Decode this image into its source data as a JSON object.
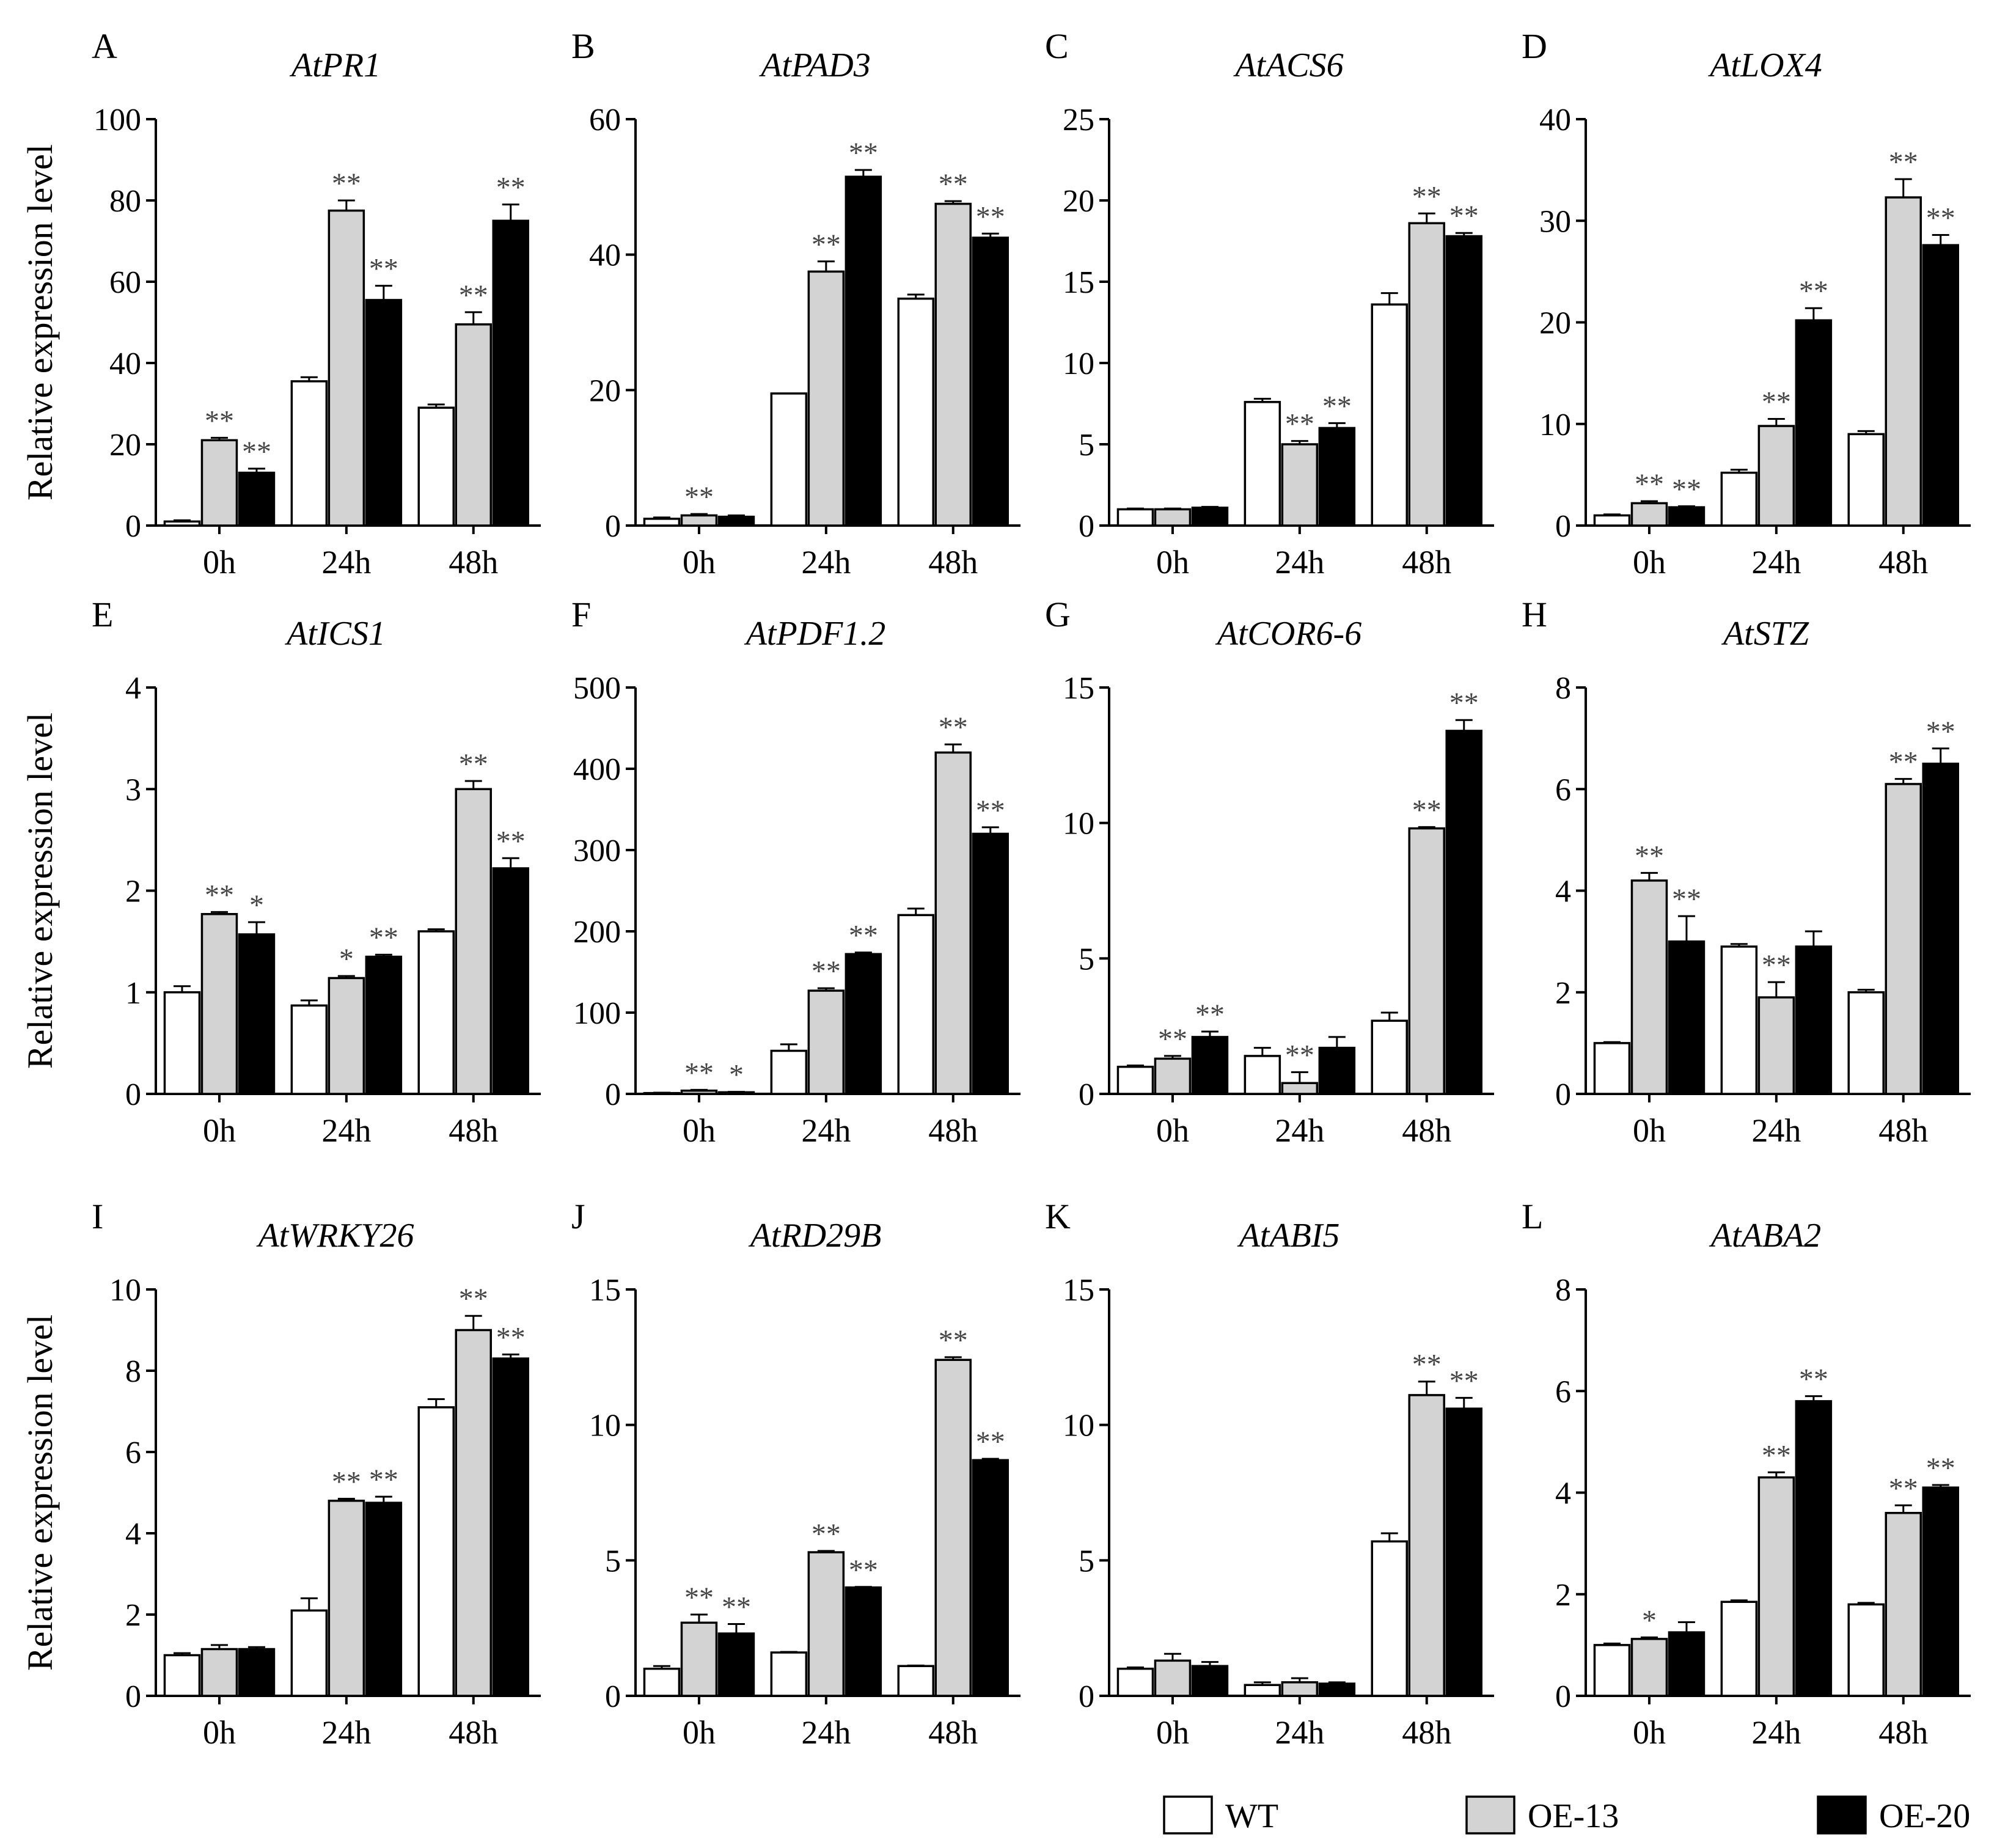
{
  "chart_data": {
    "type": "bar",
    "ylabel": "Relative expression level",
    "categories": [
      "0h",
      "24h",
      "48h"
    ],
    "series_names": [
      "WT",
      "OE-13",
      "OE-20"
    ],
    "series_colors": [
      "#ffffff",
      "#d3d3d3",
      "#000000"
    ],
    "legend": {
      "position": "bottom-right",
      "items": [
        "WT",
        "OE-13",
        "OE-20"
      ]
    },
    "panels": [
      {
        "letter": "A",
        "title": "AtPR1",
        "ylim": [
          0,
          100
        ],
        "yticks": [
          0,
          20,
          40,
          60,
          80,
          100
        ],
        "values": [
          [
            1,
            21,
            13
          ],
          [
            35.5,
            77.5,
            55.5
          ],
          [
            29,
            49.5,
            75
          ]
        ],
        "errors": [
          [
            0.3,
            0.6,
            1
          ],
          [
            1,
            2.5,
            3.5
          ],
          [
            0.8,
            3,
            4
          ]
        ],
        "sig": [
          [
            "",
            "**",
            "**"
          ],
          [
            "",
            "**",
            "**"
          ],
          [
            "",
            "**",
            "**"
          ]
        ]
      },
      {
        "letter": "B",
        "title": "AtPAD3",
        "ylim": [
          0,
          60
        ],
        "yticks": [
          0,
          20,
          40,
          60
        ],
        "values": [
          [
            1,
            1.5,
            1.3
          ],
          [
            19.5,
            37.5,
            51.5
          ],
          [
            33.5,
            47.5,
            42.5
          ]
        ],
        "errors": [
          [
            0.2,
            0.2,
            0.2
          ],
          [
            0,
            1.5,
            1
          ],
          [
            0.6,
            0.4,
            0.6
          ]
        ],
        "sig": [
          [
            "",
            "**",
            ""
          ],
          [
            "",
            "**",
            "**"
          ],
          [
            "",
            "**",
            "**"
          ]
        ]
      },
      {
        "letter": "C",
        "title": "AtACS6",
        "ylim": [
          0,
          25
        ],
        "yticks": [
          0,
          5,
          10,
          15,
          20,
          25
        ],
        "values": [
          [
            1,
            1,
            1.1
          ],
          [
            7.6,
            5,
            6
          ],
          [
            13.6,
            18.6,
            17.8
          ]
        ],
        "errors": [
          [
            0.05,
            0.05,
            0.05
          ],
          [
            0.2,
            0.2,
            0.3
          ],
          [
            0.7,
            0.6,
            0.2
          ]
        ],
        "sig": [
          [
            "",
            "",
            ""
          ],
          [
            "",
            "**",
            "**"
          ],
          [
            "",
            "**",
            "**"
          ]
        ]
      },
      {
        "letter": "D",
        "title": "AtLOX4",
        "ylim": [
          0,
          40
        ],
        "yticks": [
          0,
          10,
          20,
          30,
          40
        ],
        "values": [
          [
            1,
            2.2,
            1.8
          ],
          [
            5.2,
            9.8,
            20.2
          ],
          [
            9,
            32.3,
            27.6
          ]
        ],
        "errors": [
          [
            0.1,
            0.2,
            0.1
          ],
          [
            0.3,
            0.7,
            1.2
          ],
          [
            0.3,
            1.8,
            1
          ]
        ],
        "sig": [
          [
            "",
            "**",
            "**"
          ],
          [
            "",
            "**",
            "**"
          ],
          [
            "",
            "**",
            "**"
          ]
        ]
      },
      {
        "letter": "E",
        "title": "AtICS1",
        "ylim": [
          0,
          4
        ],
        "yticks": [
          0,
          1,
          2,
          3,
          4
        ],
        "values": [
          [
            1,
            1.77,
            1.57
          ],
          [
            0.87,
            1.14,
            1.35
          ],
          [
            1.6,
            3,
            2.22
          ]
        ],
        "errors": [
          [
            0.06,
            0.02,
            0.12
          ],
          [
            0.05,
            0.02,
            0.02
          ],
          [
            0.02,
            0.08,
            0.1
          ]
        ],
        "sig": [
          [
            "",
            "**",
            "*"
          ],
          [
            "",
            "*",
            "**"
          ],
          [
            "",
            "**",
            "**"
          ]
        ]
      },
      {
        "letter": "F",
        "title": "AtPDF1.2",
        "ylim": [
          0,
          500
        ],
        "yticks": [
          0,
          100,
          200,
          300,
          400,
          500
        ],
        "values": [
          [
            1,
            4,
            2
          ],
          [
            53,
            127,
            172
          ],
          [
            220,
            420,
            320
          ]
        ],
        "errors": [
          [
            0.5,
            1,
            0.5
          ],
          [
            8,
            3,
            2
          ],
          [
            8,
            10,
            8
          ]
        ],
        "sig": [
          [
            "",
            "**",
            "*"
          ],
          [
            "",
            "**",
            "**"
          ],
          [
            "",
            "**",
            "**"
          ]
        ]
      },
      {
        "letter": "G",
        "title": "AtCOR6-6",
        "ylim": [
          0,
          15
        ],
        "yticks": [
          0,
          5,
          10,
          15
        ],
        "values": [
          [
            1,
            1.3,
            2.1
          ],
          [
            1.4,
            0.4,
            1.7
          ],
          [
            2.7,
            9.8,
            13.4
          ]
        ],
        "errors": [
          [
            0.05,
            0.1,
            0.2
          ],
          [
            0.3,
            0.4,
            0.4
          ],
          [
            0.3,
            0.05,
            0.4
          ]
        ],
        "sig": [
          [
            "",
            "**",
            "**"
          ],
          [
            "",
            "**",
            ""
          ],
          [
            "",
            "**",
            "**"
          ]
        ]
      },
      {
        "letter": "H",
        "title": "AtSTZ",
        "ylim": [
          0,
          8
        ],
        "yticks": [
          0,
          2,
          4,
          6,
          8
        ],
        "values": [
          [
            1,
            4.2,
            3
          ],
          [
            2.9,
            1.9,
            2.9
          ],
          [
            2,
            6.1,
            6.5
          ]
        ],
        "errors": [
          [
            0.02,
            0.15,
            0.5
          ],
          [
            0.05,
            0.3,
            0.3
          ],
          [
            0.05,
            0.1,
            0.3
          ]
        ],
        "sig": [
          [
            "",
            "**",
            "**"
          ],
          [
            "",
            "**",
            ""
          ],
          [
            "",
            "**",
            "**"
          ]
        ]
      },
      {
        "letter": "I",
        "title": "AtWRKY26",
        "ylim": [
          0,
          10
        ],
        "yticks": [
          0,
          2,
          4,
          6,
          8,
          10
        ],
        "values": [
          [
            1,
            1.15,
            1.15
          ],
          [
            2.1,
            4.8,
            4.75
          ],
          [
            7.1,
            9,
            8.3
          ]
        ],
        "errors": [
          [
            0.05,
            0.1,
            0.05
          ],
          [
            0.3,
            0.05,
            0.15
          ],
          [
            0.2,
            0.35,
            0.1
          ]
        ],
        "sig": [
          [
            "",
            "",
            ""
          ],
          [
            "",
            "**",
            "**"
          ],
          [
            "",
            "**",
            "**"
          ]
        ]
      },
      {
        "letter": "J",
        "title": "AtRD29B",
        "ylim": [
          0,
          15
        ],
        "yticks": [
          0,
          5,
          10,
          15
        ],
        "values": [
          [
            1,
            2.7,
            2.3
          ],
          [
            1.6,
            5.3,
            4
          ],
          [
            1.1,
            12.4,
            8.7
          ]
        ],
        "errors": [
          [
            0.1,
            0.3,
            0.35
          ],
          [
            0.02,
            0.05,
            0.02
          ],
          [
            0.02,
            0.1,
            0.05
          ]
        ],
        "sig": [
          [
            "",
            "**",
            "**"
          ],
          [
            "",
            "**",
            "**"
          ],
          [
            "",
            "**",
            "**"
          ]
        ]
      },
      {
        "letter": "K",
        "title": "AtABI5",
        "ylim": [
          0,
          15
        ],
        "yticks": [
          0,
          5,
          10,
          15
        ],
        "values": [
          [
            1,
            1.3,
            1.1
          ],
          [
            0.4,
            0.5,
            0.45
          ],
          [
            5.7,
            11.1,
            10.6
          ]
        ],
        "errors": [
          [
            0.05,
            0.25,
            0.15
          ],
          [
            0.1,
            0.15,
            0.05
          ],
          [
            0.3,
            0.5,
            0.4
          ]
        ],
        "sig": [
          [
            "",
            "",
            ""
          ],
          [
            "",
            "",
            ""
          ],
          [
            "",
            "**",
            "**"
          ]
        ]
      },
      {
        "letter": "L",
        "title": "AtABA2",
        "ylim": [
          0,
          8
        ],
        "yticks": [
          0,
          2,
          4,
          6,
          8
        ],
        "values": [
          [
            1,
            1.12,
            1.25
          ],
          [
            1.85,
            4.3,
            5.8
          ],
          [
            1.8,
            3.6,
            4.1
          ]
        ],
        "errors": [
          [
            0.03,
            0.03,
            0.2
          ],
          [
            0.03,
            0.1,
            0.1
          ],
          [
            0.03,
            0.15,
            0.05
          ]
        ],
        "sig": [
          [
            "",
            "*",
            ""
          ],
          [
            "",
            "**",
            "**"
          ],
          [
            "",
            "**",
            "**"
          ]
        ]
      }
    ]
  }
}
